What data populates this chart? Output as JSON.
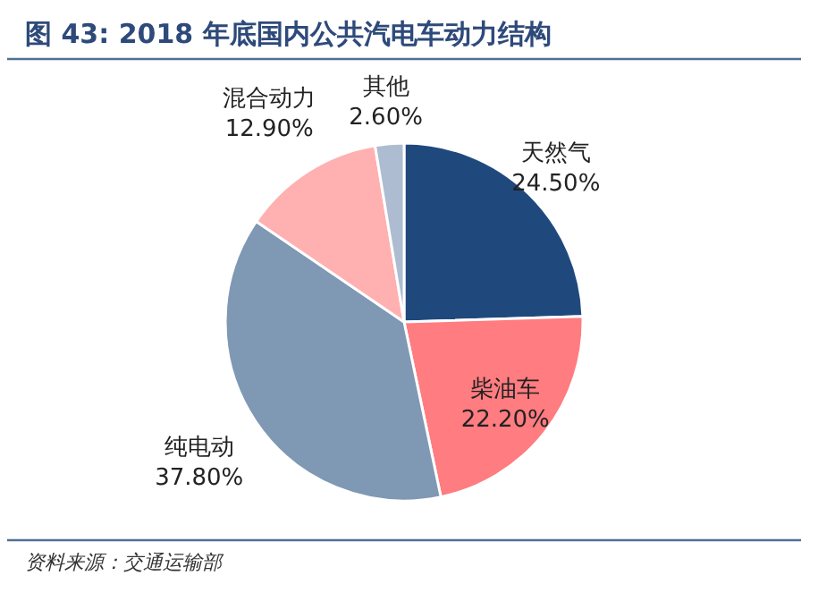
{
  "chart_data": {
    "type": "pie",
    "title": "图 43: 2018 年底国内公共汽电车动力结构",
    "categories": [
      "天然气",
      "柴油车",
      "纯电动",
      "混合动力",
      "其他"
    ],
    "values": [
      24.5,
      22.2,
      37.8,
      12.9,
      2.6
    ],
    "value_labels": [
      "24.50%",
      "22.20%",
      "37.80%",
      "12.90%",
      "2.60%"
    ],
    "colors": [
      "#1f497d",
      "#ff7c80",
      "#7f98b4",
      "#ffb0b0",
      "#adbcd0"
    ],
    "legend": false,
    "annotations": [
      "资料来源：交通运输部"
    ]
  }
}
